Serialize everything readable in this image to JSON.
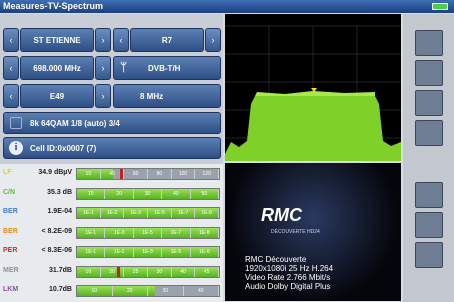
{
  "header": {
    "title": "Measures-TV-Spectrum"
  },
  "tuning": {
    "site": "ST ETIENNE",
    "channel_plan": "R7",
    "frequency": "698.000 MHz",
    "standard": "DVB-T/H",
    "channel": "E49",
    "bandwidth": "8 MHz",
    "modulation": "8k 64QAM 1/8 (auto) 3/4",
    "cell_id": "Cell ID:0x0007 (7)"
  },
  "measurements": [
    {
      "label": "LF",
      "value": "34.9 dBµV",
      "scale": [
        "10",
        "40",
        "60",
        "80",
        "100",
        "120"
      ]
    },
    {
      "label": "C/N",
      "value": "35.3 dB",
      "scale": [
        "10",
        "20",
        "30",
        "40",
        "50"
      ]
    },
    {
      "label": "BER",
      "value": "1.9E-04",
      "scale": [
        "1E-1",
        "1E-2",
        "1E-3",
        "1E-5",
        "1E-7",
        "1E-8"
      ]
    },
    {
      "label": "BER",
      "value": "< 8.2E-09",
      "scale": [
        "1E-1",
        "1E-3",
        "1E-5",
        "1E-7",
        "1E-8"
      ]
    },
    {
      "label": "PER",
      "value": "< 8.3E-06",
      "scale": [
        "1E-1",
        "1E-2",
        "1E-3",
        "1E-5",
        "1E-6"
      ]
    },
    {
      "label": "MER",
      "value": "31.7dB",
      "scale": [
        "10",
        "20",
        "25",
        "30",
        "40",
        "45"
      ]
    },
    {
      "label": "LKM",
      "value": "10.7dB",
      "scale": [
        "10",
        "20",
        "30",
        "40"
      ]
    }
  ],
  "service": {
    "logo": "RMC",
    "logo_sub": "DÉCOUVERTE HD24",
    "lines": [
      "RMC Découverte",
      "1920x1080i 25 Hz H.264",
      "Video Rate 2.766 Mbit/s",
      "Audio Dolby Digital Plus"
    ]
  }
}
